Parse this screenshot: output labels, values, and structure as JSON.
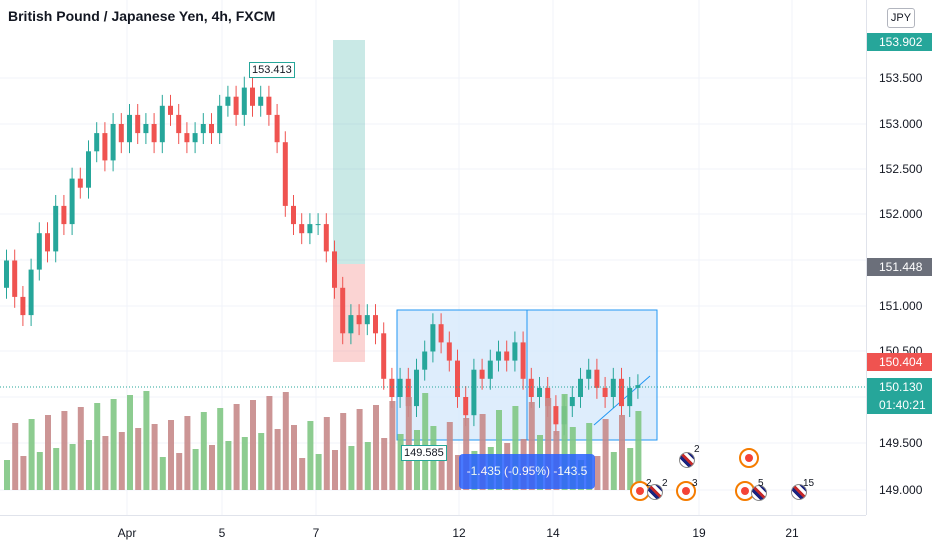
{
  "header": {
    "title": "British Pound / Japanese Yen, 4h, FXCM"
  },
  "price_scale": {
    "currency": "JPY",
    "ticks": [
      "153.500",
      "153.000",
      "152.500",
      "152.000",
      "151.000",
      "150.500",
      "149.500",
      "149.000"
    ],
    "labels": [
      {
        "text": "153.902",
        "color": "#26a69a"
      },
      {
        "text": "151.448",
        "color": "#6b6f7a"
      },
      {
        "text": "150.404",
        "color": "#ef5350"
      },
      {
        "text": "150.130",
        "color": "#26a69a"
      },
      {
        "text": "01:40:21",
        "color": "#26a69a"
      }
    ]
  },
  "time_scale": {
    "ticks": [
      "Apr",
      "5",
      "7",
      "12",
      "14",
      "19",
      "21"
    ]
  },
  "annotations": {
    "high_label": "153.413",
    "low_label": "149.585",
    "measure_label": "-1.435 (-0.95%) -143.5",
    "event_counts": [
      "2",
      "2",
      "2",
      "3",
      "5",
      "15"
    ]
  },
  "colors": {
    "up": "#26a69a",
    "down": "#ef5350",
    "vol_up": "#81c784",
    "vol_down": "#c78a8a",
    "box_fill": "#d6e8fb",
    "box_stroke": "#2196f3",
    "accent": "#2962ff"
  }
}
